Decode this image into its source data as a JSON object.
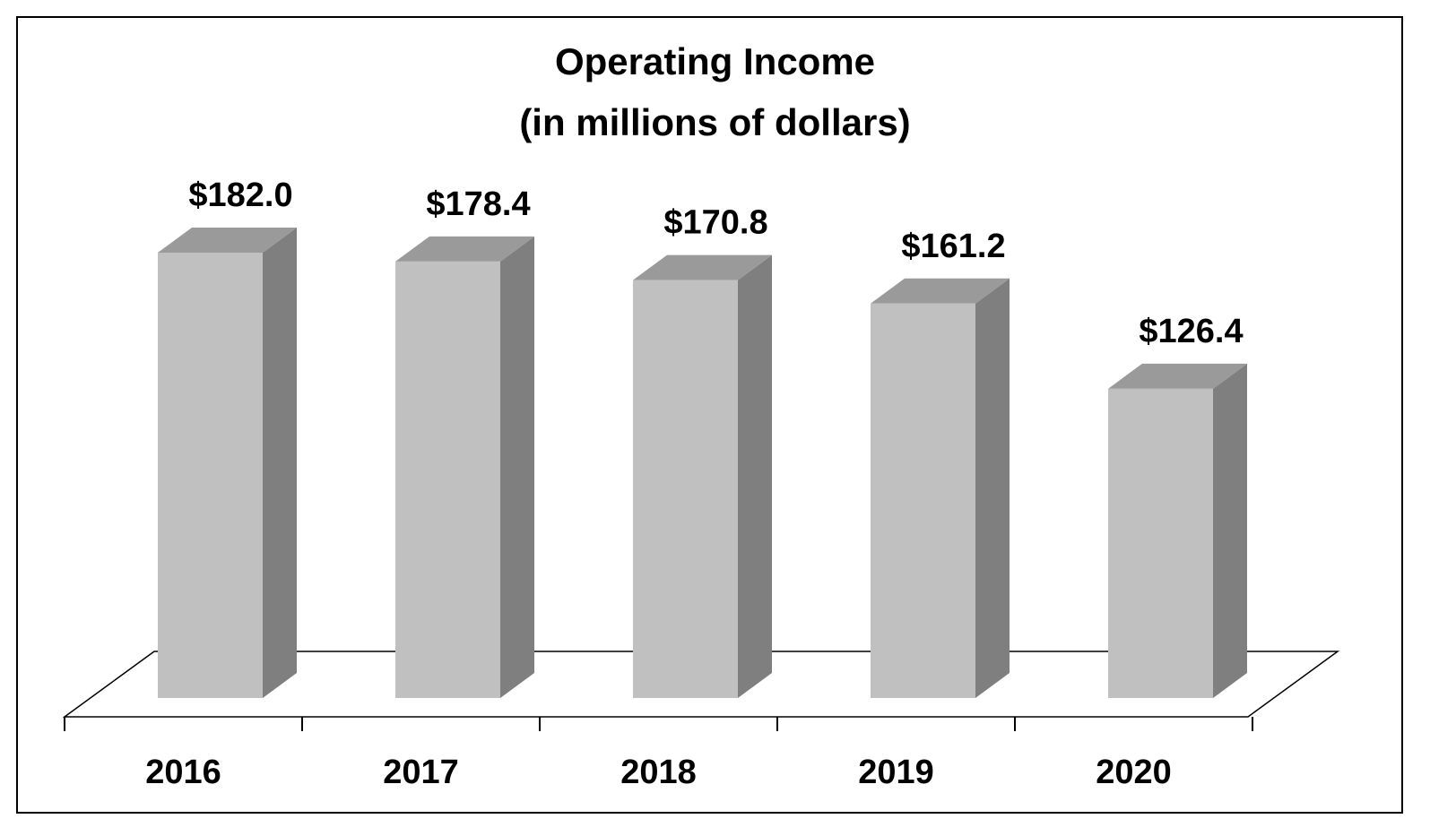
{
  "chart_data": {
    "type": "bar",
    "title": "Operating Income",
    "subtitle": "(in millions of dollars)",
    "categories": [
      "2016",
      "2017",
      "2018",
      "2019",
      "2020"
    ],
    "values": [
      182.0,
      178.4,
      170.8,
      161.2,
      126.4
    ],
    "value_labels": [
      "$182.0",
      "$178.4",
      "$170.8",
      "$161.2",
      "$126.4"
    ],
    "xlabel": "",
    "ylabel": "",
    "ylim": [
      0,
      182
    ],
    "grid": false,
    "legend": "none",
    "style": "3d-column"
  },
  "colors": {
    "bar_front": "#c0c0c0",
    "bar_side": "#7f7f7f",
    "bar_top": "#9a9a9a",
    "floor": "#ffffff",
    "text": "#000000",
    "border": "#000000"
  }
}
